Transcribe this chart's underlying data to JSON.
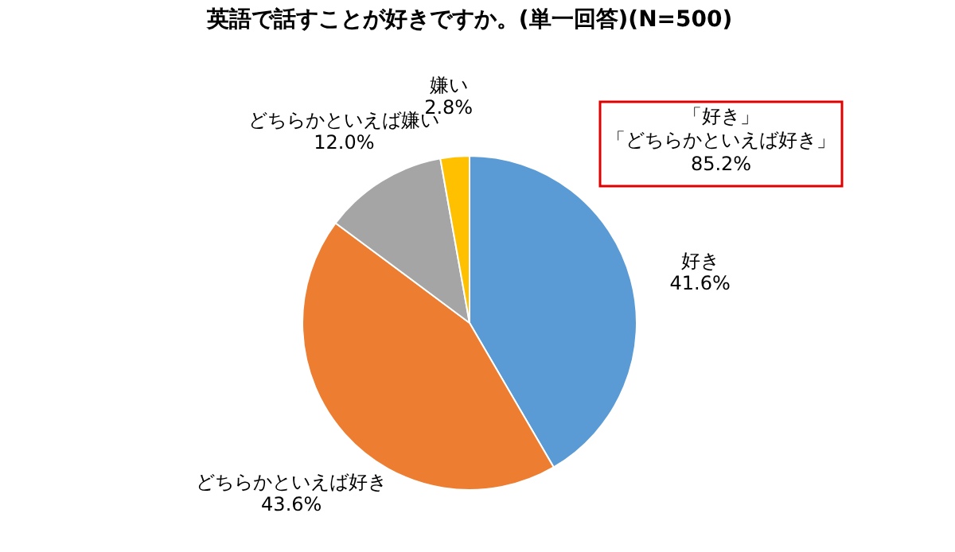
{
  "chart_data": {
    "type": "pie",
    "title": "英語で話すことが好きですか。(単一回答)(N=500)",
    "categories": [
      "好き",
      "どちらかといえば好き",
      "どちらかといえば嫌い",
      "嫌い"
    ],
    "values": [
      41.6,
      43.6,
      12.0,
      2.8
    ],
    "value_labels": [
      "41.6%",
      "43.6%",
      "12.0%",
      "2.8%"
    ],
    "colors": [
      "#5b9bd5",
      "#ed7d31",
      "#a5a5a5",
      "#ffc000"
    ],
    "annotations": [
      "「好き」",
      "「どちらかといえば好き」",
      "85.2%"
    ],
    "legend": false
  }
}
